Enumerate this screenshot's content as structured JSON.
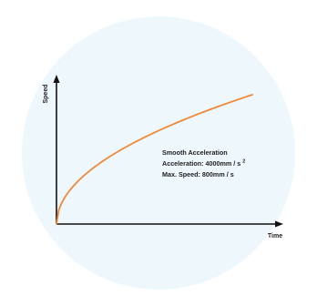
{
  "colors": {
    "background_circle": "#eef7fc",
    "axis": "#111111",
    "curve": "#ef8a3a"
  },
  "chart_data": {
    "type": "line",
    "xlabel": "Time",
    "ylabel": "Speed",
    "grid": false,
    "curve_shape": "square-root (concave, decelerating growth)",
    "annotations": {
      "title": "Smooth Acceleration",
      "acceleration_prefix": "Acceleration: 4000mm / s",
      "acceleration_exponent": "2",
      "max_speed": "Max. Speed: 800mm / s"
    }
  }
}
